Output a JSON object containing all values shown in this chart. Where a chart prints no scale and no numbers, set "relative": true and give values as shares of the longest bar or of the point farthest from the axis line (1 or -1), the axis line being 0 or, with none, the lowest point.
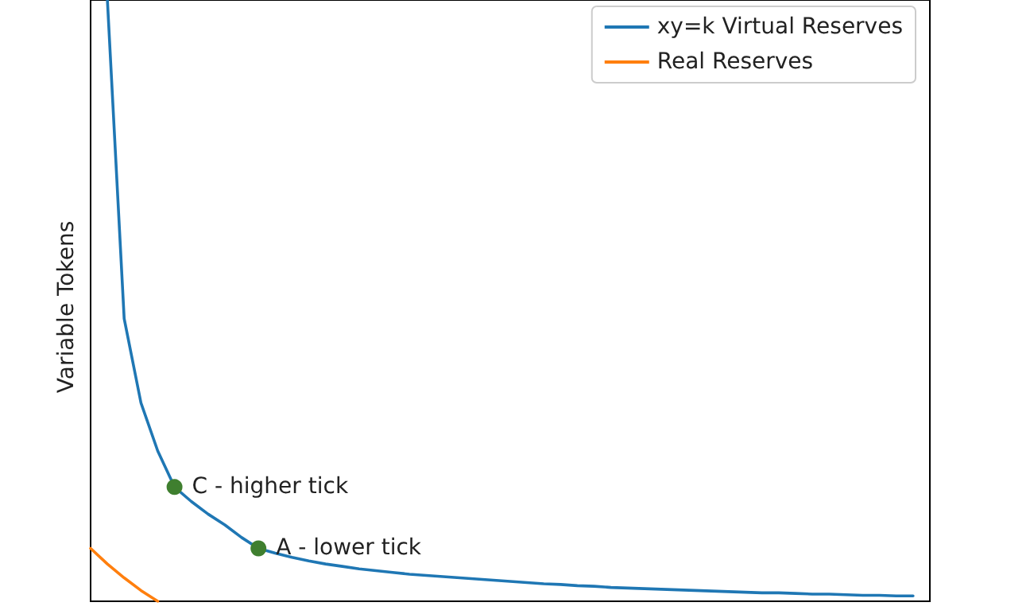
{
  "chart_data": {
    "type": "line",
    "relative": true,
    "ylabel": "Variable Tokens",
    "categories": [
      null,
      null,
      null,
      null,
      null,
      null,
      null,
      null,
      null,
      null,
      null,
      null,
      null,
      null,
      null,
      null,
      null,
      null,
      null,
      null,
      null,
      null,
      null,
      null,
      null,
      null,
      null,
      null,
      null,
      null,
      null,
      null,
      null,
      null,
      null,
      null,
      null,
      null,
      null,
      null,
      null,
      null,
      null,
      null,
      null,
      null,
      null,
      null,
      null,
      null,
      null
    ],
    "series": [
      {
        "name": "xy=k Virtual Reserves",
        "color": "#1f77b4",
        "values": [
          null,
          1,
          0.47,
          0.33,
          0.25,
          0.19,
          0.166,
          0.145,
          0.127,
          0.106,
          0.088,
          0.08,
          0.073,
          0.067,
          0.062,
          0.058,
          0.054,
          0.051,
          0.048,
          0.045,
          0.043,
          0.041,
          0.039,
          0.037,
          0.035,
          0.033,
          0.031,
          0.029,
          0.028,
          0.026,
          0.025,
          0.023,
          0.022,
          0.021,
          0.02,
          0.019,
          0.018,
          0.017,
          0.016,
          0.015,
          0.014,
          0.014,
          0.013,
          0.012,
          0.012,
          0.011,
          0.01,
          0.01,
          0.009,
          0.009,
          null
        ],
        "colors": [
          null,
          null,
          null,
          null,
          null,
          "#3f7f2f",
          null,
          null,
          null,
          null,
          "#3f7f2f",
          null,
          null,
          null,
          null,
          null,
          null,
          null,
          null,
          null,
          null,
          null,
          null,
          null,
          null,
          null,
          null,
          null,
          null,
          null,
          null,
          null,
          null,
          null,
          null,
          null,
          null,
          null,
          null,
          null,
          null,
          null,
          null,
          null,
          null,
          null,
          null,
          null,
          null,
          null,
          null
        ]
      },
      {
        "name": "Real Reserves",
        "color": "#ff7f0e",
        "values": [
          0.088,
          0.062,
          0.039,
          0.018,
          0,
          null,
          null,
          null,
          null,
          null,
          null,
          null,
          null,
          null,
          null,
          null,
          null,
          null,
          null,
          null,
          null,
          null,
          null,
          null,
          null,
          null,
          null,
          null,
          null,
          null,
          null,
          null,
          null,
          null,
          null,
          null,
          null,
          null,
          null,
          null,
          null,
          null,
          null,
          null,
          null,
          null,
          null,
          null,
          null,
          null,
          null
        ]
      }
    ],
    "annotations": [
      "C - higher tick",
      "A - lower tick"
    ],
    "legend": "top right",
    "grid": false,
    "line_style": "solid"
  }
}
